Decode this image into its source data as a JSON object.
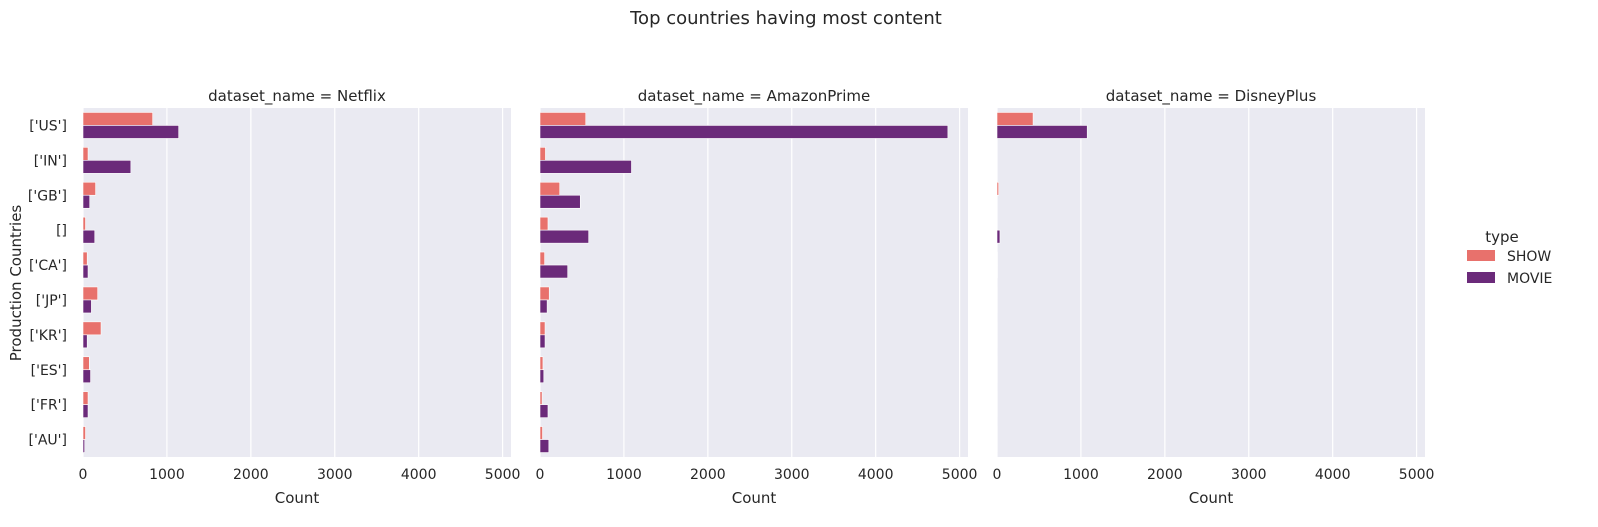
{
  "chart_data": {
    "type": "bar",
    "orientation": "horizontal",
    "title": "Top countries having most content",
    "xlabel": "Count",
    "ylabel": "Production Countries",
    "xlim": [
      0,
      5100
    ],
    "xticks": [
      0,
      1000,
      2000,
      3000,
      4000,
      5000
    ],
    "grid": true,
    "legend": {
      "title": "type",
      "placement": "right",
      "entries": [
        "SHOW",
        "MOVIE"
      ]
    },
    "colors": {
      "SHOW": "#e8716c",
      "MOVIE": "#6b2a7a",
      "plot_bg": "#eaeaf2",
      "grid": "#ffffff"
    },
    "categories": [
      "['US']",
      "['IN']",
      "['GB']",
      "[]",
      "['CA']",
      "['JP']",
      "['KR']",
      "['ES']",
      "['FR']",
      "['AU']"
    ],
    "panels": [
      {
        "title": "dataset_name = Netflix",
        "series": [
          {
            "name": "SHOW",
            "values": [
              830,
              60,
              150,
              30,
              50,
              175,
              215,
              75,
              60,
              30
            ]
          },
          {
            "name": "MOVIE",
            "values": [
              1140,
              570,
              80,
              140,
              60,
              100,
              50,
              90,
              60,
              20
            ]
          }
        ]
      },
      {
        "title": "dataset_name = AmazonPrime",
        "series": [
          {
            "name": "SHOW",
            "values": [
              545,
              65,
              235,
              95,
              55,
              110,
              60,
              35,
              25,
              30
            ]
          },
          {
            "name": "MOVIE",
            "values": [
              4860,
              1090,
              480,
              580,
              330,
              85,
              60,
              45,
              95,
              105
            ]
          }
        ]
      },
      {
        "title": "dataset_name = DisneyPlus",
        "series": [
          {
            "name": "SHOW",
            "values": [
              430,
              0,
              20,
              0,
              5,
              3,
              3,
              3,
              3,
              3
            ]
          },
          {
            "name": "MOVIE",
            "values": [
              1075,
              0,
              0,
              35,
              5,
              3,
              3,
              3,
              3,
              3
            ]
          }
        ]
      }
    ]
  }
}
